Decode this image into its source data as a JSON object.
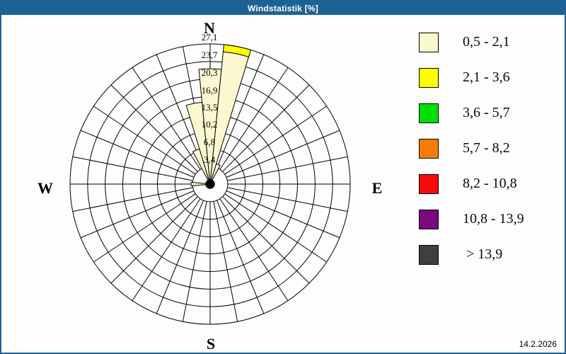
{
  "window": {
    "title": "Windstatistik [%]",
    "date": "14.2.2026"
  },
  "colors": {
    "frame_blue": "#1C6295",
    "grid_line": "#000000",
    "background": "#FDFDFD"
  },
  "compass": {
    "north": "N",
    "east": "E",
    "south": "S",
    "west": "W"
  },
  "legend": {
    "items": [
      {
        "range": "0,5 - 2,1",
        "color": "#FBF8D0"
      },
      {
        "range": "2,1 - 3,6",
        "color": "#FFFF00"
      },
      {
        "range": "3,6 - 5,7",
        "color": "#00DF00"
      },
      {
        "range": "5,7 - 8,2",
        "color": "#F57D07"
      },
      {
        "range": "8,2 - 10,8",
        "color": "#F90A0A"
      },
      {
        "range": "10,8 - 13,9",
        "color": "#7B097B"
      },
      {
        "range": " > 13,9",
        "color": "#3F3F3F"
      }
    ]
  },
  "chart_data": {
    "type": "wind-rose",
    "title": "Windstatistik [%]",
    "units": "percent frequency",
    "sectors": 32,
    "sector_width_deg": 11.25,
    "max_value": 27.1,
    "rings": {
      "values": [
        3.4,
        6.8,
        10.2,
        13.5,
        16.9,
        20.3,
        23.7,
        27.1
      ],
      "labels": [
        "3,4",
        "6,8",
        "10,2",
        "13,5",
        "16,9",
        "20,3",
        "23,7",
        "27,1"
      ]
    },
    "bars": [
      {
        "name": "NNW",
        "direction_deg": 337.5,
        "segments": [
          {
            "speed_class": 0,
            "to": 7.1
          }
        ]
      },
      {
        "name": "NbW",
        "direction_deg": 348.75,
        "segments": [
          {
            "speed_class": 0,
            "to": 15.9
          }
        ]
      },
      {
        "name": "N",
        "direction_deg": 0,
        "segments": [
          {
            "speed_class": 0,
            "to": 22.3
          }
        ]
      },
      {
        "name": "NbE",
        "direction_deg": 11.25,
        "segments": [
          {
            "speed_class": 0,
            "to": 25.7
          },
          {
            "speed_class": 1,
            "to": 27.1
          }
        ]
      },
      {
        "name": "NNE",
        "direction_deg": 22.5,
        "segments": [
          {
            "speed_class": 0,
            "to": 4.1
          }
        ]
      },
      {
        "name": "W",
        "direction_deg": 270,
        "segments": [
          {
            "speed_class": 0,
            "to": 3.7
          }
        ]
      }
    ],
    "center_blob_pct": 0.9
  }
}
